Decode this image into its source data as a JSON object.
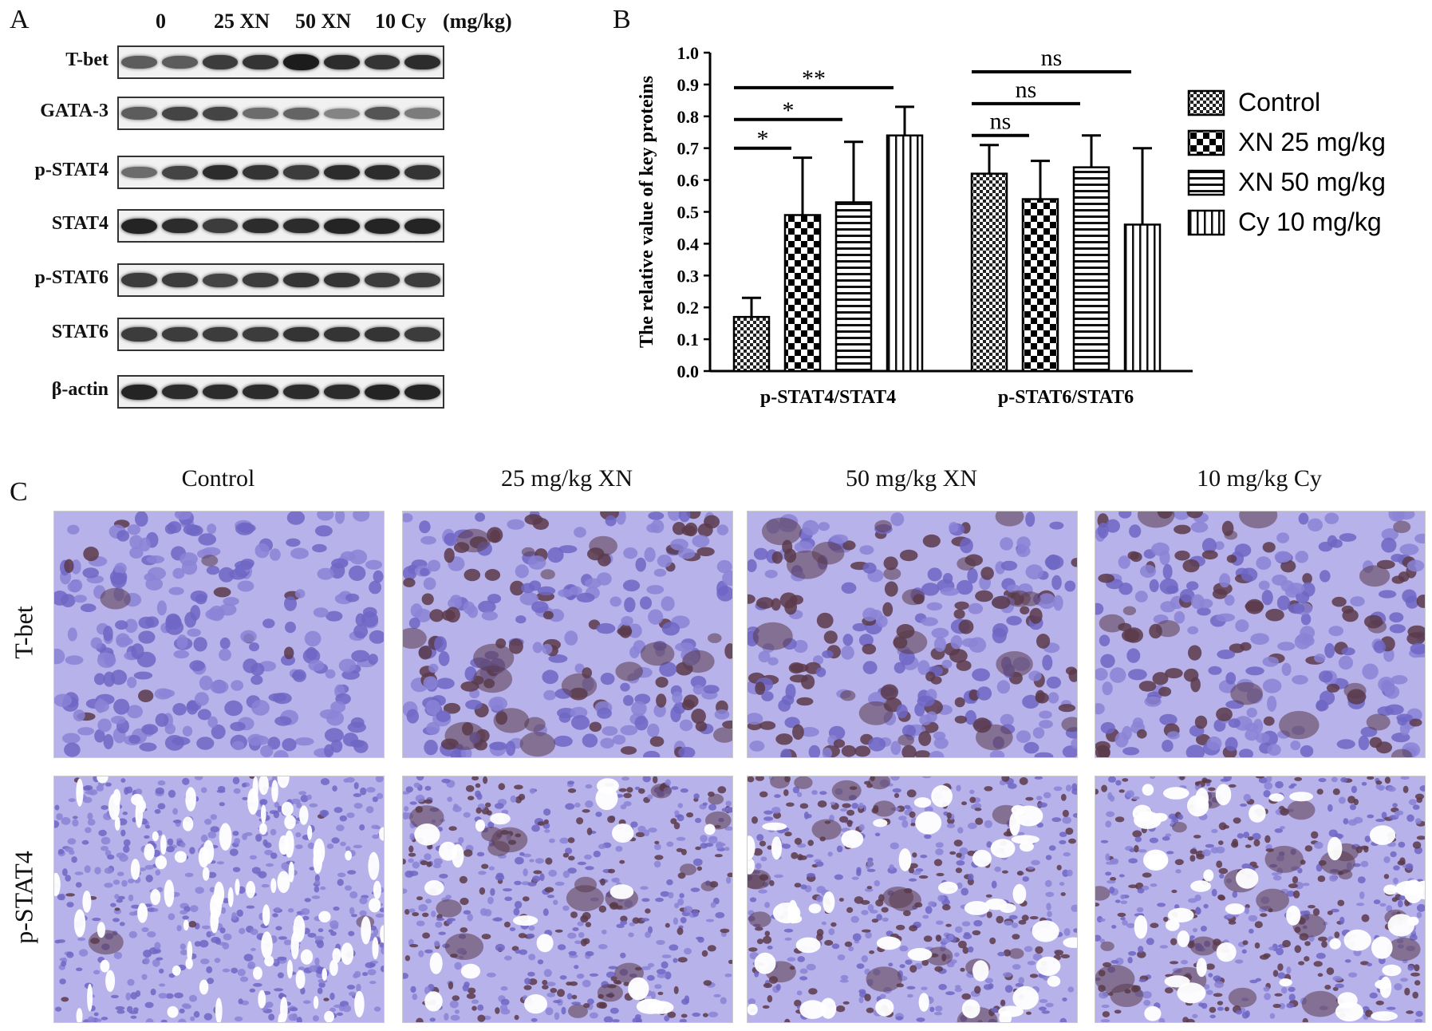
{
  "panel_a": {
    "letter": "A",
    "lane_headers": [
      "0",
      "25 XN",
      "50 XN",
      "10 Cy",
      "(mg/kg)"
    ],
    "blots": [
      {
        "label": "T-bet",
        "intensities": [
          0.55,
          0.55,
          0.75,
          0.8,
          0.95,
          0.85,
          0.8,
          0.85
        ]
      },
      {
        "label": "GATA-3",
        "intensities": [
          0.55,
          0.7,
          0.7,
          0.45,
          0.5,
          0.3,
          0.6,
          0.35
        ]
      },
      {
        "label": "p-STAT4",
        "intensities": [
          0.45,
          0.7,
          0.85,
          0.8,
          0.75,
          0.85,
          0.85,
          0.8
        ]
      },
      {
        "label": "STAT4",
        "intensities": [
          0.9,
          0.85,
          0.75,
          0.85,
          0.85,
          0.9,
          0.9,
          0.9
        ]
      },
      {
        "label": "p-STAT6",
        "intensities": [
          0.75,
          0.75,
          0.7,
          0.75,
          0.8,
          0.8,
          0.75,
          0.75
        ]
      },
      {
        "label": "STAT6",
        "intensities": [
          0.75,
          0.75,
          0.75,
          0.75,
          0.8,
          0.8,
          0.8,
          0.75
        ]
      },
      {
        "label": "β-actin",
        "intensities": [
          0.9,
          0.85,
          0.85,
          0.85,
          0.85,
          0.85,
          0.9,
          0.9
        ]
      }
    ]
  },
  "panel_b": {
    "letter": "B"
  },
  "chart_data": {
    "type": "bar",
    "ylabel": "The relative value of key proteins",
    "ylim": [
      0,
      1.0
    ],
    "yticks": [
      "0.0",
      "0.1",
      "0.2",
      "0.3",
      "0.4",
      "0.5",
      "0.6",
      "0.7",
      "0.8",
      "0.9",
      "1.0"
    ],
    "categories": [
      "p-STAT4/STAT4",
      "p-STAT6/STAT6"
    ],
    "series": [
      {
        "name": "Control",
        "pattern": "checker-small",
        "values": [
          0.17,
          0.62
        ],
        "errors": [
          0.06,
          0.09
        ]
      },
      {
        "name": "XN 25 mg/kg",
        "pattern": "checker-large",
        "values": [
          0.49,
          0.54
        ],
        "errors": [
          0.18,
          0.12
        ]
      },
      {
        "name": "XN 50 mg/kg",
        "pattern": "horizontal",
        "values": [
          0.53,
          0.64
        ],
        "errors": [
          0.19,
          0.1
        ]
      },
      {
        "name": "Cy  10 mg/kg",
        "pattern": "vertical",
        "values": [
          0.74,
          0.46
        ],
        "errors": [
          0.09,
          0.24
        ]
      }
    ],
    "significance": [
      {
        "category": 0,
        "from": 0,
        "to": 1,
        "label": "*",
        "y": 0.7
      },
      {
        "category": 0,
        "from": 0,
        "to": 2,
        "label": "*",
        "y": 0.79
      },
      {
        "category": 0,
        "from": 0,
        "to": 3,
        "label": "**",
        "y": 0.89
      },
      {
        "category": 1,
        "from": 0,
        "to": 1,
        "label": "ns",
        "y": 0.74
      },
      {
        "category": 1,
        "from": 0,
        "to": 2,
        "label": "ns",
        "y": 0.84
      },
      {
        "category": 1,
        "from": 0,
        "to": 3,
        "label": "ns",
        "y": 0.94
      }
    ],
    "legend_placement": "right"
  },
  "panel_c": {
    "letter": "C",
    "columns": [
      "Control",
      "25 mg/kg XN",
      "50 mg/kg XN",
      "10 mg/kg Cy"
    ],
    "rows": [
      "T-bet",
      "p-STAT4"
    ],
    "stain_levels": [
      [
        0.05,
        0.55,
        0.6,
        0.45
      ],
      [
        0.05,
        0.55,
        0.6,
        0.7
      ]
    ],
    "colors": {
      "hematoxylin": "#8a83d6",
      "dab": "#5a3a4a",
      "background": "#b8b2ea"
    }
  }
}
